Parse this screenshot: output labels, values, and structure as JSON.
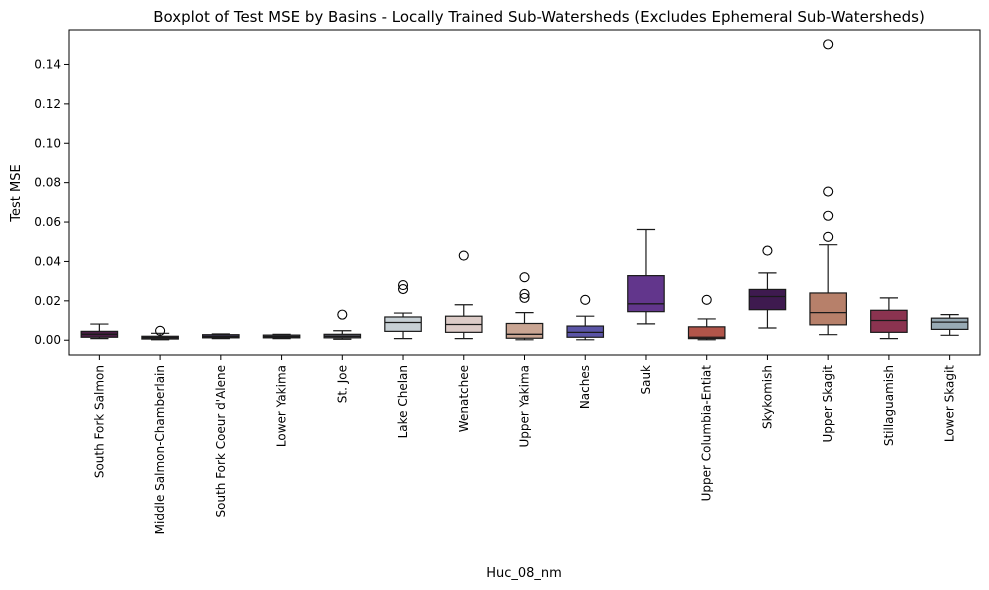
{
  "chart_data": {
    "type": "box",
    "title": "Boxplot of Test MSE by Basins - Locally Trained Sub-Watersheds (Excludes Ephemeral Sub-Watersheds)",
    "xlabel": "Huc_08_nm",
    "ylabel": "Test MSE",
    "ylim": [
      -0.0075,
      0.1575
    ],
    "yticks": [
      0.0,
      0.02,
      0.04,
      0.06,
      0.08,
      0.1,
      0.12,
      0.14
    ],
    "ytick_labels": [
      "0.00",
      "0.02",
      "0.04",
      "0.06",
      "0.08",
      "0.10",
      "0.12",
      "0.14"
    ],
    "grid": false,
    "legend": "none",
    "categories": [
      "South Fork Salmon",
      "Middle Salmon-Chamberlain",
      "South Fork Coeur d'Alene",
      "Lower Yakima",
      "St. Joe",
      "Lake Chelan",
      "Wenatchee",
      "Upper Yakima",
      "Naches",
      "Sauk",
      "Upper Columbia-Entiat",
      "Skykomish",
      "Upper Skagit",
      "Stillaguamish",
      "Lower Skagit"
    ],
    "boxes": [
      {
        "whislo": 0.0008,
        "q1": 0.0015,
        "med": 0.003,
        "q3": 0.0045,
        "whishi": 0.0082,
        "fliers": [],
        "color": "#4a1e45"
      },
      {
        "whislo": 0.0002,
        "q1": 0.0006,
        "med": 0.0013,
        "q3": 0.002,
        "whishi": 0.0035,
        "fliers": [
          0.0048
        ],
        "color": "#5b4b66"
      },
      {
        "whislo": 0.0008,
        "q1": 0.0012,
        "med": 0.0018,
        "q3": 0.0028,
        "whishi": 0.0032,
        "fliers": [],
        "color": "#3a3550"
      },
      {
        "whislo": 0.0008,
        "q1": 0.0012,
        "med": 0.0018,
        "q3": 0.0026,
        "whishi": 0.003,
        "fliers": [],
        "color": "#4a4a5c"
      },
      {
        "whislo": 0.0005,
        "q1": 0.0012,
        "med": 0.002,
        "q3": 0.003,
        "whishi": 0.0048,
        "fliers": [
          0.013
        ],
        "color": "#606070"
      },
      {
        "whislo": 0.0008,
        "q1": 0.0045,
        "med": 0.009,
        "q3": 0.0118,
        "whishi": 0.0138,
        "fliers": [
          0.026,
          0.028
        ],
        "color": "#c7d0d5"
      },
      {
        "whislo": 0.0008,
        "q1": 0.004,
        "med": 0.008,
        "q3": 0.0122,
        "whishi": 0.018,
        "fliers": [
          0.043
        ],
        "color": "#dccbc7"
      },
      {
        "whislo": 0.0002,
        "q1": 0.001,
        "med": 0.003,
        "q3": 0.0085,
        "whishi": 0.014,
        "fliers": [
          0.0215,
          0.0235,
          0.032
        ],
        "color": "#c9a593"
      },
      {
        "whislo": 0.0002,
        "q1": 0.0015,
        "med": 0.004,
        "q3": 0.0072,
        "whishi": 0.0122,
        "fliers": [
          0.0205
        ],
        "color": "#5b55a6"
      },
      {
        "whislo": 0.0083,
        "q1": 0.0145,
        "med": 0.0185,
        "q3": 0.0328,
        "whishi": 0.0562,
        "fliers": [],
        "color": "#62368c"
      },
      {
        "whislo": 0.0002,
        "q1": 0.0008,
        "med": 0.0015,
        "q3": 0.0068,
        "whishi": 0.0108,
        "fliers": [
          0.0205
        ],
        "color": "#b2554a"
      },
      {
        "whislo": 0.0062,
        "q1": 0.0155,
        "med": 0.0222,
        "q3": 0.0258,
        "whishi": 0.0342,
        "fliers": [
          0.0455
        ],
        "color": "#3e1a4f"
      },
      {
        "whislo": 0.0028,
        "q1": 0.0078,
        "med": 0.014,
        "q3": 0.024,
        "whishi": 0.0485,
        "fliers": [
          0.0525,
          0.0632,
          0.0755,
          0.1502
        ],
        "color": "#b7806a"
      },
      {
        "whislo": 0.0008,
        "q1": 0.004,
        "med": 0.01,
        "q3": 0.0152,
        "whishi": 0.0215,
        "fliers": [],
        "color": "#8b3350"
      },
      {
        "whislo": 0.0025,
        "q1": 0.0055,
        "med": 0.0092,
        "q3": 0.0112,
        "whishi": 0.013,
        "fliers": [],
        "color": "#98aab4"
      }
    ]
  }
}
